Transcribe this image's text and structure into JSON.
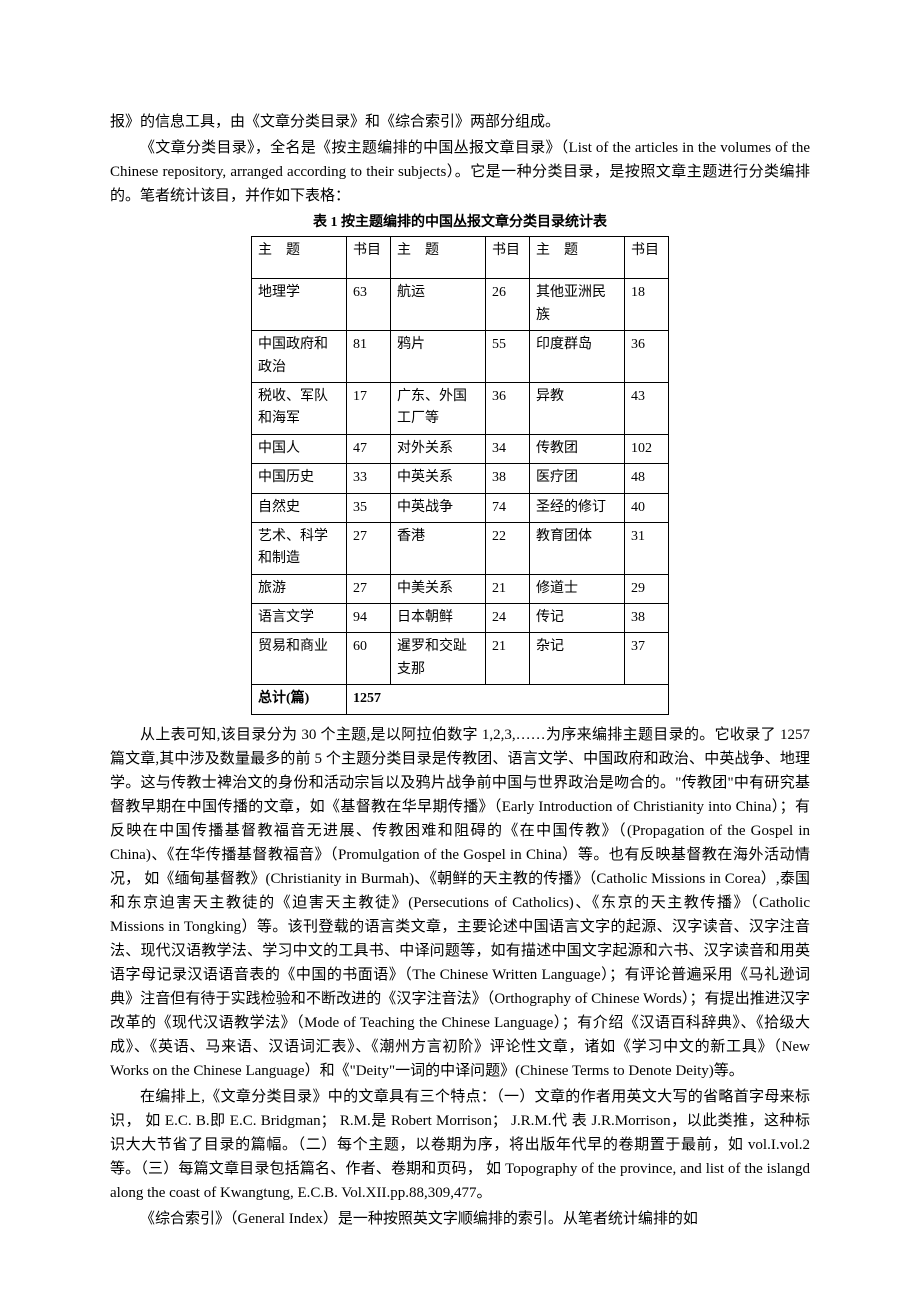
{
  "intro1_part1": "报》的信息工具，由《文章分类目录》和《综合索引》两部分组成。",
  "intro2": "《文章分类目录》，全名是《按主题编排的中国丛报文章目录》（List of the articles in the volumes of the Chinese repository, arranged according to their subjects）。它是一种分类目录，是按照文章主题进行分类编排的。笔者统计该目，并作如下表格：",
  "table_title": "表 1   按主题编排的中国丛报文章分类目录统计表",
  "headers": {
    "subject": "主　题",
    "count": "书目"
  },
  "rows": [
    {
      "a": "地理学",
      "ac": "63",
      "b": "航运",
      "bc": "26",
      "c": "其他亚洲民族",
      "cc": "18"
    },
    {
      "a": "中国政府和政治",
      "ac": "81",
      "b": "鸦片",
      "bc": "55",
      "c": "印度群岛",
      "cc": "36"
    },
    {
      "a": "税收、军队和海军",
      "ac": "17",
      "b": "广东、外国工厂等",
      "bc": "36",
      "c": "异教",
      "cc": "43"
    },
    {
      "a": "中国人",
      "ac": "47",
      "b": "对外关系",
      "bc": "34",
      "c": "传教团",
      "cc": "102"
    },
    {
      "a": "中国历史",
      "ac": "33",
      "b": "中英关系",
      "bc": "38",
      "c": "医疗团",
      "cc": "48"
    },
    {
      "a": "自然史",
      "ac": "35",
      "b": "中英战争",
      "bc": "74",
      "c": "圣经的修订",
      "cc": "40"
    },
    {
      "a": "艺术、科学和制造",
      "ac": "27",
      "b": "香港",
      "bc": "22",
      "c": "教育团体",
      "cc": "31"
    },
    {
      "a": "旅游",
      "ac": "27",
      "b": "中美关系",
      "bc": "21",
      "c": "修道士",
      "cc": "29"
    },
    {
      "a": "语言文学",
      "ac": "94",
      "b": "日本朝鲜",
      "bc": "24",
      "c": "传记",
      "cc": "38"
    },
    {
      "a": "贸易和商业",
      "ac": "60",
      "b": "暹罗和交趾支那",
      "bc": "21",
      "c": "杂记",
      "cc": "37"
    }
  ],
  "total_label": "总计(篇)",
  "total_value": "1257",
  "para1": "从上表可知,该目录分为 30 个主题,是以阿拉伯数字 1,2,3,……为序来编排主题目录的。它收录了 1257 篇文章,其中涉及数量最多的前 5 个主题分类目录是传教团、语言文学、中国政府和政治、中英战争、地理学。这与传教士裨治文的身份和活动宗旨以及鸦片战争前中国与世界政治是吻合的。\"传教团\"中有研究基督教早期在中国传播的文章，如《基督教在华早期传播》（Early Introduction of Christianity into China）；有反映在中国传播基督教福音无进展、传教困难和阻碍的《在中国传教》（(Propagation of the Gospel in China)、《在华传播基督教福音》（Promulgation of the Gospel in China）等。也有反映基督教在海外活动情况， 如《缅甸基督教》(Christianity in Burmah)、《朝鲜的天主教的传播》（Catholic Missions in Corea）,泰国和东京迫害天主教徒的《迫害天主教徒》(Persecutions of Catholics)、《东京的天主教传播》（Catholic Missions in Tongking）等。该刊登载的语言类文章，主要论述中国语言文字的起源、汉字读音、汉字注音法、现代汉语教学法、学习中文的工具书、中译问题等，如有描述中国文字起源和六书、汉字读音和用英语字母记录汉语语音表的《中国的书面语》（The Chinese Written Language）；有评论普遍采用《马礼逊词典》注音但有待于实践检验和不断改进的《汉字注音法》（Orthography of Chinese Words）；有提出推进汉字改革的《现代汉语教学法》（Mode of Teaching the Chinese Language）；有介绍《汉语百科辞典》、《拾级大成》、《英语、马来语、汉语词汇表》、《潮州方言初阶》评论性文章，诸如《学习中文的新工具》（New Works on the Chinese Language）和《\"Deity\"一词的中译问题》(Chinese Terms to Denote Deity)等。",
  "para2": "在编排上,《文章分类目录》中的文章具有三个特点：（一）文章的作者用英文大写的省略首字母来标识， 如 E.C. B.即 E.C. Bridgman； R.M.是 Robert Morrison； J.R.M.代 表 J.R.Morrison，以此类推，这种标识大大节省了目录的篇幅。（二）每个主题，以卷期为序，将出版年代早的卷期置于最前，如 vol.I.vol.2 等。（三）每篇文章目录包括篇名、作者、卷期和页码， 如 Topography of the province, and list of the islangd along the coast of Kwangtung, E.C.B. Vol.XII.pp.88,309,477。",
  "para3": "《综合索引》（General Index）是一种按照英文字顺编排的索引。从笔者统计编排的如"
}
